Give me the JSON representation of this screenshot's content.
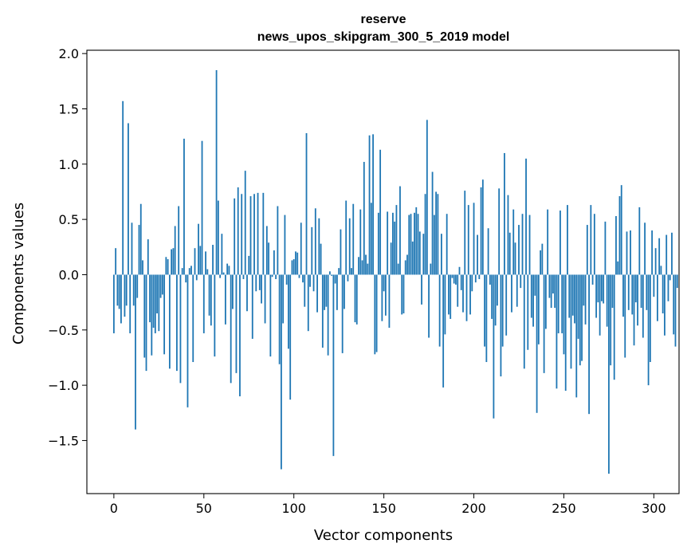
{
  "chart_data": {
    "type": "bar",
    "title": "reserve",
    "subtitle": "news_upos_skipgram_300_5_2019 model",
    "xlabel": "Vector components",
    "ylabel": "Components values",
    "xlim": [
      -15,
      314
    ],
    "ylim": [
      -1.98,
      2.03
    ],
    "xticks": [
      0,
      50,
      100,
      150,
      200,
      250,
      300
    ],
    "xtick_labels": [
      "0",
      "50",
      "100",
      "150",
      "200",
      "250",
      "300"
    ],
    "yticks": [
      -1.5,
      -1.0,
      -0.5,
      0.0,
      0.5,
      1.0,
      1.5,
      2.0
    ],
    "ytick_labels": [
      "−1.5",
      "−1.0",
      "−0.5",
      "0.0",
      "0.5",
      "1.0",
      "1.5",
      "2.0"
    ],
    "bar_color": "#1f77b4",
    "values": [
      -0.53,
      0.24,
      -0.28,
      -0.31,
      -0.44,
      1.57,
      -0.38,
      -0.28,
      1.37,
      -0.53,
      0.47,
      -0.28,
      -1.4,
      -0.21,
      0.45,
      0.64,
      0.13,
      -0.75,
      -0.87,
      0.32,
      -0.43,
      -0.73,
      -0.48,
      -0.53,
      -0.35,
      -0.51,
      -0.21,
      -0.18,
      -0.72,
      0.16,
      0.14,
      -0.85,
      0.23,
      0.24,
      0.44,
      -0.87,
      0.62,
      -0.98,
      0.06,
      1.23,
      -0.07,
      -1.2,
      0.06,
      0.08,
      -0.79,
      0.24,
      -0.05,
      0.46,
      0.26,
      1.21,
      -0.53,
      0.21,
      0.05,
      -0.37,
      -0.46,
      0.27,
      -0.74,
      1.85,
      0.67,
      -0.03,
      0.37,
      0.02,
      -0.45,
      0.1,
      0.08,
      -0.98,
      -0.31,
      0.69,
      -0.89,
      0.79,
      -1.1,
      0.73,
      -0.04,
      0.94,
      -0.33,
      0.17,
      0.71,
      -0.58,
      0.73,
      -0.15,
      0.74,
      -0.14,
      -0.26,
      0.74,
      -0.44,
      0.44,
      0.29,
      -0.74,
      -0.02,
      0.22,
      -0.04,
      0.62,
      -0.81,
      -1.76,
      -0.44,
      0.54,
      -0.09,
      -0.67,
      -1.13,
      0.13,
      0.14,
      0.21,
      0.2,
      -0.03,
      0.47,
      -0.07,
      -0.29,
      1.28,
      -0.51,
      -0.11,
      0.43,
      -0.15,
      0.6,
      -0.34,
      0.51,
      0.28,
      -0.66,
      -0.32,
      -0.29,
      -0.73,
      0.03,
      -0.01,
      -1.64,
      -0.08,
      -0.32,
      0.06,
      0.41,
      -0.71,
      -0.31,
      0.67,
      -0.06,
      0.51,
      0.06,
      0.64,
      -0.43,
      -0.45,
      0.16,
      0.59,
      0.13,
      1.02,
      0.18,
      0.1,
      1.26,
      0.65,
      1.27,
      -0.72,
      -0.7,
      0.56,
      1.13,
      -0.42,
      -0.15,
      -0.37,
      0.57,
      -0.48,
      0.29,
      0.56,
      0.48,
      0.63,
      0.1,
      0.8,
      -0.36,
      -0.35,
      0.13,
      0.18,
      0.54,
      0.55,
      0.3,
      0.56,
      0.61,
      0.55,
      0.39,
      -0.27,
      0.37,
      0.73,
      1.4,
      -0.57,
      0.1,
      0.93,
      0.54,
      0.75,
      0.73,
      -0.65,
      0.37,
      -1.02,
      -0.54,
      0.55,
      -0.36,
      -0.4,
      -0.03,
      -0.08,
      -0.09,
      -0.29,
      0.07,
      -0.14,
      -0.34,
      0.76,
      -0.42,
      0.63,
      -0.36,
      -0.15,
      0.65,
      -0.07,
      0.36,
      -0.04,
      0.79,
      0.86,
      -0.65,
      -0.79,
      0.42,
      -0.09,
      -0.4,
      -1.3,
      -0.46,
      -0.28,
      0.78,
      -0.92,
      -0.65,
      1.1,
      -0.55,
      0.72,
      0.38,
      -0.34,
      0.59,
      0.29,
      -0.29,
      0.45,
      -0.12,
      0.55,
      -0.85,
      1.05,
      -0.68,
      0.54,
      -0.39,
      -0.47,
      -0.19,
      -1.25,
      -0.63,
      0.22,
      0.28,
      -0.89,
      -0.49,
      0.59,
      -0.21,
      -0.3,
      -0.17,
      -0.3,
      -1.03,
      -0.53,
      0.58,
      -0.53,
      -0.72,
      -1.05,
      0.63,
      -0.39,
      -0.85,
      -0.37,
      -0.44,
      -1.11,
      -0.58,
      -0.82,
      -0.78,
      -0.28,
      -0.45,
      0.45,
      -1.26,
      0.63,
      -0.09,
      0.55,
      -0.39,
      -0.25,
      -0.55,
      -0.24,
      -0.26,
      0.48,
      -0.47,
      -1.8,
      -0.82,
      -0.3,
      -0.95,
      0.53,
      0.12,
      0.71,
      0.81,
      -0.38,
      -0.75,
      0.39,
      -0.32,
      0.4,
      -0.36,
      -0.64,
      -0.25,
      -0.46,
      0.61,
      -0.3,
      -0.57,
      0.47,
      -0.32,
      -1.0,
      -0.79,
      0.4,
      -0.2,
      0.24,
      -0.42,
      0.33,
      0.08,
      -0.35,
      -0.55,
      0.36,
      -0.24,
      -0.05,
      0.38,
      -0.54,
      -0.65,
      -0.12
    ]
  }
}
